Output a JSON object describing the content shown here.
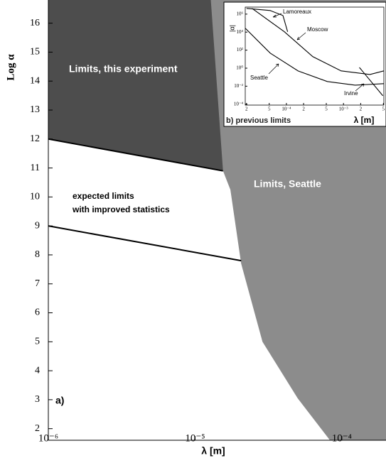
{
  "chart_data": [
    {
      "type": "area",
      "xlabel": "λ [m]",
      "ylabel": "Log α",
      "xscale": "log",
      "xlim": [
        1e-06,
        0.0002
      ],
      "ylim": [
        1.6,
        16.8
      ],
      "xticks": [
        {
          "value": 1e-06,
          "label": "10⁻⁶"
        },
        {
          "value": 1e-05,
          "label": "10⁻⁵"
        },
        {
          "value": 0.0001,
          "label": "10⁻⁴"
        }
      ],
      "yticks": [
        2,
        3,
        4,
        5,
        6,
        7,
        8,
        9,
        10,
        11,
        12,
        13,
        14,
        15,
        16
      ],
      "series": [
        {
          "name": "Limits, this experiment",
          "color": "#4d4d4d",
          "fill": "above",
          "x": [
            1e-06,
            1.55e-05
          ],
          "values": [
            12,
            10.9
          ]
        },
        {
          "name": "Limits, Seattle",
          "color": "#8c8c8c",
          "fill": "right",
          "x": [
            1.28e-05,
            1.55e-05,
            1.74e-05,
            2.06e-05,
            2.88e-05,
            5e-05,
            8.3e-05
          ],
          "values": [
            16.8,
            10.9,
            10.25,
            7.7,
            5.0,
            3.05,
            1.6
          ]
        },
        {
          "color": "#000000",
          "fill": "none",
          "x": [
            1e-06,
            2.06e-05
          ],
          "values": [
            9.0,
            7.8
          ]
        }
      ],
      "annotations": [
        "expected limits",
        "with improved statistics",
        "a)"
      ]
    },
    {
      "type": "line",
      "title": "b) previous limits",
      "xlabel": "λ [m]",
      "ylabel": "|α|",
      "xscale": "log",
      "yscale": "log",
      "xlim": [
        1.9e-05,
        0.0051
      ],
      "ylim": [
        8e-05,
        6000000.0
      ],
      "xticks": [
        {
          "value": 2e-05,
          "label": "2"
        },
        {
          "value": 5e-05,
          "label": "5"
        },
        {
          "value": 0.0001,
          "label": "10⁻⁴"
        },
        {
          "value": 0.0002,
          "label": "2"
        },
        {
          "value": 0.0005,
          "label": "5"
        },
        {
          "value": 0.001,
          "label": "10⁻³"
        },
        {
          "value": 0.002,
          "label": "2"
        },
        {
          "value": 0.005,
          "label": "5"
        }
      ],
      "yticks": [
        {
          "value": 1000000.0,
          "label": "10⁶"
        },
        {
          "value": 10000.0,
          "label": "10⁴"
        },
        {
          "value": 100,
          "label": "10²"
        },
        {
          "value": 1,
          "label": "10⁰"
        },
        {
          "value": 0.01,
          "label": "10⁻²"
        },
        {
          "value": 0.0001,
          "label": "10⁻⁴"
        }
      ],
      "series": [
        {
          "name": "Lamoreaux",
          "color": "#000000",
          "x": [
            2e-05,
            5.2e-05,
            8.7e-05,
            0.000105
          ],
          "values": [
            4300000.0,
            2500000.0,
            690000.0,
            11000.0
          ]
        },
        {
          "name": "Moscow",
          "color": "#000000",
          "x": [
            2.5e-05,
            9.2e-05,
            0.00029,
            0.00091,
            0.0029,
            0.0051
          ],
          "values": [
            4300000.0,
            11000.0,
            19,
            0.5,
            0.2,
            0.5
          ]
        },
        {
          "name": "Seattle",
          "color": "#000000",
          "x": [
            1.9e-05,
            5.2e-05,
            0.00016,
            0.00052,
            0.0016,
            0.0051
          ],
          "values": [
            27000.0,
            47,
            0.5,
            0.033,
            0.013,
            0.019
          ]
        },
        {
          "name": "Irvine",
          "color": "#000000",
          "x": [
            0.0019,
            0.0049
          ],
          "values": [
            1.2,
            0.00087
          ]
        }
      ]
    }
  ]
}
